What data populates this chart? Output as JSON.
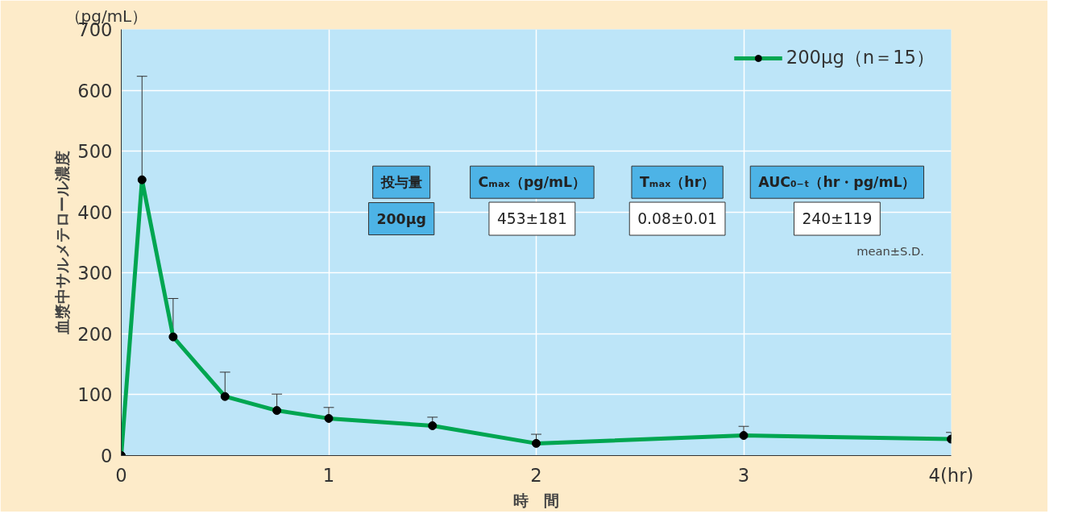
{
  "chart_data": {
    "type": "line",
    "xlabel": "時　間",
    "ylabel": "血漿中サルメテロール濃度",
    "x": [
      0,
      0.1,
      0.25,
      0.5,
      0.75,
      1,
      1.5,
      2,
      3,
      4
    ],
    "series": [
      {
        "name": "200μg（n＝15）",
        "color": "#00a651",
        "values": [
          0,
          453,
          195,
          97,
          74,
          61,
          49,
          20,
          33,
          27
        ],
        "errors": [
          null,
          [
            453,
            623
          ],
          [
            195,
            258
          ],
          [
            97,
            137
          ],
          [
            74,
            101
          ],
          [
            61,
            79
          ],
          [
            49,
            63
          ],
          [
            20,
            35
          ],
          [
            33,
            48
          ],
          [
            27,
            38
          ]
        ]
      }
    ],
    "xlim": [
      0,
      4
    ],
    "xticks": [
      0,
      1,
      2,
      3,
      {
        "value": 4,
        "label": "4(hr)"
      }
    ],
    "ylim": [
      0,
      700
    ],
    "yticks": [
      0,
      100,
      200,
      300,
      400,
      500,
      600,
      700
    ],
    "grid": true,
    "legend": "top right",
    "marker": "circle",
    "line_style": "solid",
    "annotations": [
      "（pg/mL）",
      "投与量",
      "Cₘₐₓ（pg/mL）",
      "Tₘₐₓ（hr）",
      "AUC₀₋ₜ（hr・pg/mL）",
      "200μg",
      "453±181",
      "0.08±0.01",
      "240±119",
      "mean±S.D."
    ]
  }
}
